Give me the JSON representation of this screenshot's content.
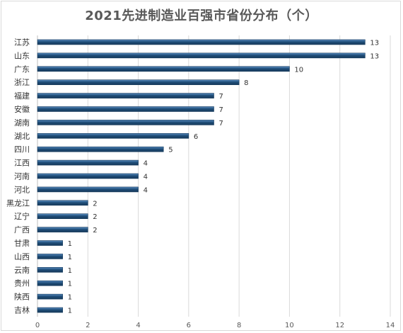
{
  "chart_data": {
    "type": "bar",
    "orientation": "horizontal",
    "title": "2021先进制造业百强市省份分布（个）",
    "categories": [
      "江苏",
      "山东",
      "广东",
      "浙江",
      "福建",
      "安徽",
      "湖南",
      "湖北",
      "四川",
      "江西",
      "河南",
      "河北",
      "黑龙江",
      "辽宁",
      "广西",
      "甘肃",
      "山西",
      "云南",
      "贵州",
      "陕西",
      "吉林"
    ],
    "values": [
      13,
      13,
      10,
      8,
      7,
      7,
      7,
      6,
      5,
      4,
      4,
      4,
      2,
      2,
      2,
      1,
      1,
      1,
      1,
      1,
      1
    ],
    "xlim": [
      0,
      14
    ],
    "xticks": [
      0,
      2,
      4,
      6,
      8,
      10,
      12,
      14
    ],
    "grid": true,
    "bar_color": "#1f4e79",
    "legend": "none"
  }
}
